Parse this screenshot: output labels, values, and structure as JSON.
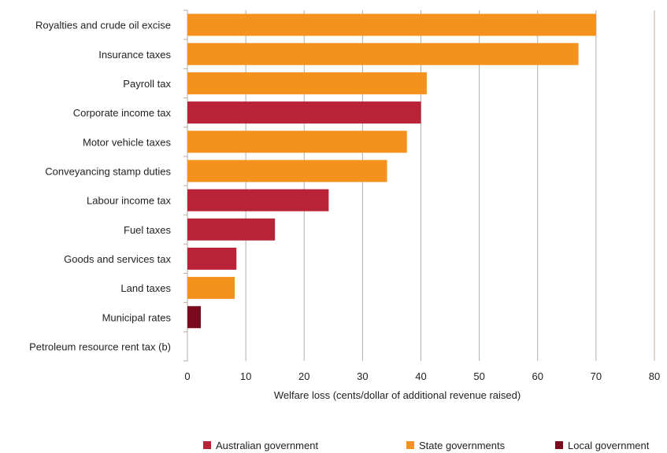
{
  "chart_data": {
    "type": "bar",
    "orientation": "horizontal",
    "categories": [
      "Royalties and crude oil excise",
      "Insurance taxes",
      "Payroll tax",
      "Corporate income tax",
      "Motor vehicle taxes",
      "Conveyancing stamp duties",
      "Labour income tax",
      "Fuel taxes",
      "Goods and services tax",
      "Land taxes",
      "Municipal rates",
      "Petroleum resource rent tax (b)"
    ],
    "values": [
      70,
      67,
      41,
      40,
      37.6,
      34.2,
      24.2,
      15,
      8.4,
      8.1,
      2.3,
      0
    ],
    "groups": [
      "State governments",
      "State governments",
      "State governments",
      "Australian government",
      "State governments",
      "State governments",
      "Australian government",
      "Australian government",
      "Australian government",
      "State governments",
      "Local government",
      "Australian government"
    ],
    "legend": [
      {
        "name": "Australian government",
        "color": "#b92338"
      },
      {
        "name": "State governments",
        "color": "#f5921e"
      },
      {
        "name": "Local government",
        "color": "#7a0a1e"
      }
    ],
    "xlabel": "Welfare loss (cents/dollar of additional revenue raised)",
    "xlim": [
      0,
      80
    ],
    "xticks": [
      0,
      10,
      20,
      30,
      40,
      50,
      60,
      70,
      80
    ],
    "grid": "vertical",
    "legend_position": "bottom"
  }
}
